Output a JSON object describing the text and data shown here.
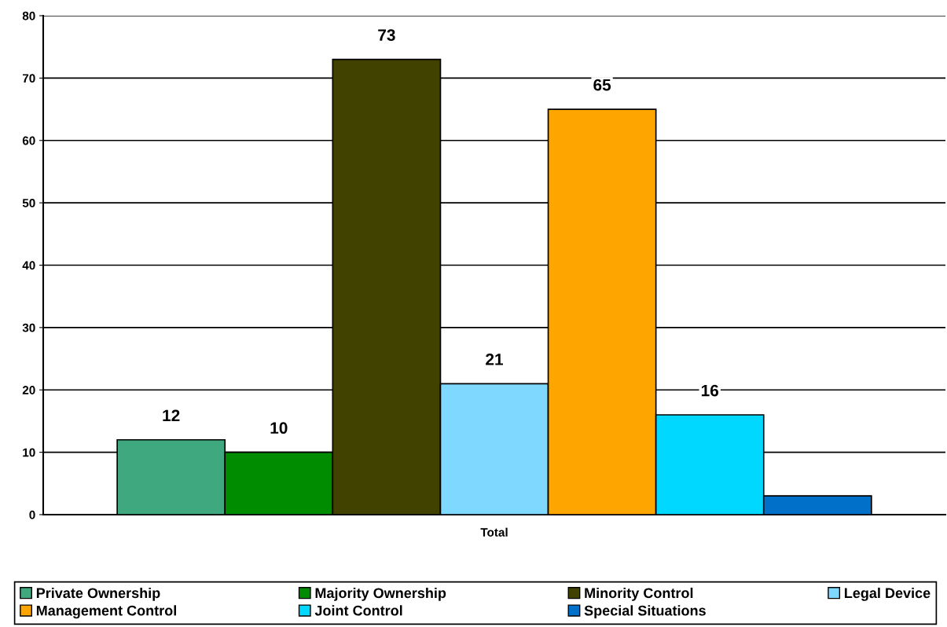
{
  "chart_data": {
    "type": "bar",
    "categories": [
      "Total"
    ],
    "series": [
      {
        "name": "Private Ownership",
        "color": "#3fa87f",
        "values": [
          12
        ],
        "value_labels": [
          "12"
        ]
      },
      {
        "name": "Majority Ownership",
        "color": "#008c00",
        "values": [
          10
        ],
        "value_labels": [
          "10"
        ]
      },
      {
        "name": "Minority Control",
        "color": "#424200",
        "values": [
          73
        ],
        "value_labels": [
          "73"
        ]
      },
      {
        "name": "Legal Device",
        "color": "#7fd8ff",
        "values": [
          21
        ],
        "value_labels": [
          "21"
        ]
      },
      {
        "name": "Management Control",
        "color": "#ffa500",
        "values": [
          65
        ],
        "value_labels": [
          "65"
        ]
      },
      {
        "name": "Joint Control",
        "color": "#00d8ff",
        "values": [
          16
        ],
        "value_labels": [
          "16"
        ]
      },
      {
        "name": "Special Situations",
        "color": "#0070c8",
        "values": [
          3
        ],
        "value_labels": [
          null
        ]
      }
    ],
    "ylim": [
      0,
      80
    ],
    "yticks": [
      0,
      10,
      20,
      30,
      40,
      50,
      60,
      70,
      80
    ],
    "grid": "y",
    "legend": "bottom"
  }
}
